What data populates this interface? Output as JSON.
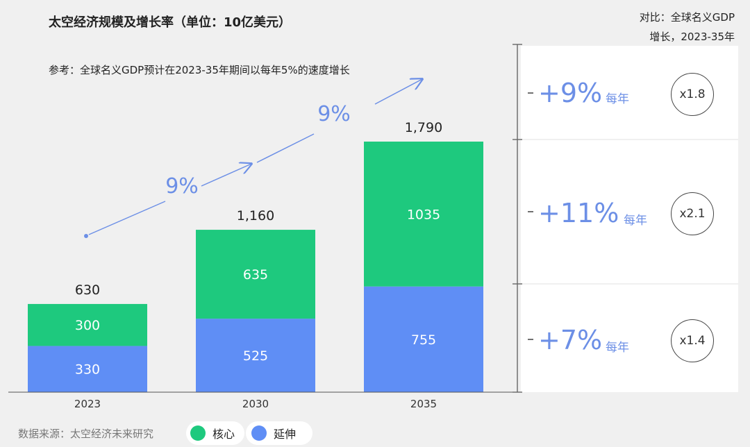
{
  "title": "太空经济规模及增长率（单位：10亿美元）",
  "reference_note": "参考：全球名义GDP预计在2023-35年期间以每年5%的速度增长",
  "comparison_title_line1": "对比：全球名义GDP",
  "comparison_title_line2": "增长，2023-35年",
  "source": "数据来源：太空经济未来研究",
  "colors": {
    "core": "#1ec97e",
    "extension": "#5f8ef5",
    "accent": "#6c8fe6"
  },
  "chart_data": {
    "type": "bar",
    "stacked": true,
    "categories": [
      "2023",
      "2030",
      "2035"
    ],
    "series": [
      {
        "name": "延伸",
        "values": [
          330,
          525,
          755
        ]
      },
      {
        "name": "核心",
        "values": [
          300,
          635,
          1035
        ]
      }
    ],
    "totals_labels": [
      "630",
      "1,160",
      "1,790"
    ],
    "growth_arrows": [
      "9%",
      "9%"
    ],
    "legend": [
      "核心",
      "延伸"
    ],
    "ylim": [
      0,
      1790
    ]
  },
  "comparison": [
    {
      "rate": "+9%",
      "unit": "每年",
      "multiple": "x1.8"
    },
    {
      "rate": "+11%",
      "unit": "每年",
      "multiple": "x2.1"
    },
    {
      "rate": "+7%",
      "unit": "每年",
      "multiple": "x1.4"
    }
  ]
}
